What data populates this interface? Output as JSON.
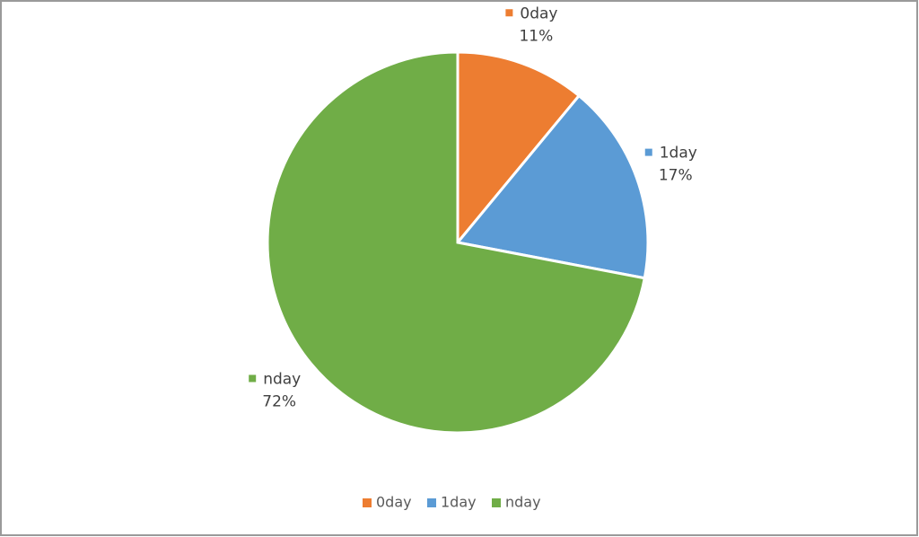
{
  "chart_data": {
    "type": "pie",
    "categories": [
      "0day",
      "1day",
      "nday"
    ],
    "values": [
      11,
      17,
      72
    ],
    "value_labels": [
      "11%",
      "17%",
      "72%"
    ],
    "colors": [
      "#ed7d31",
      "#5b9bd5",
      "#70ad47"
    ],
    "legend": "bottom"
  }
}
